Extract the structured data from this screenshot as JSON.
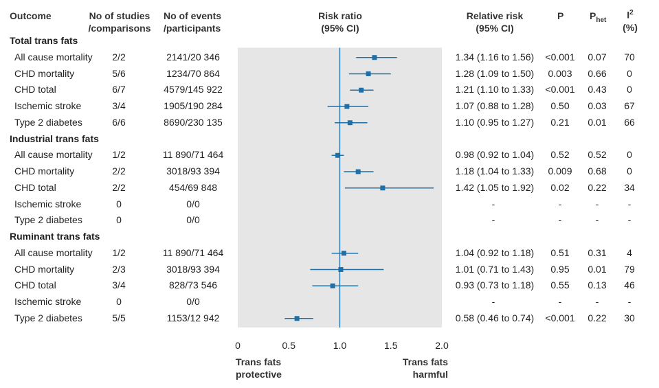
{
  "headers": {
    "outcome": "Outcome",
    "studies_1": "No of studies",
    "studies_2": "/comparisons",
    "events_1": "No of events",
    "events_2": "/participants",
    "rr_1": "Risk ratio",
    "rr_2": "(95% CI)",
    "relrisk_1": "Relative risk",
    "relrisk_2": "(95% CI)",
    "p": "P",
    "phet_main": "P",
    "phet_sub": "het",
    "i2_main": "I",
    "i2_sup": "2",
    "i2_unit": "(%)"
  },
  "axis": {
    "ticks": [
      "0",
      "0.5",
      "1.0",
      "1.5",
      "2.0"
    ],
    "tick_values": [
      0,
      0.5,
      1.0,
      1.5,
      2.0
    ],
    "left_caption_1": "Trans fats",
    "left_caption_2": "protective",
    "right_caption_1": "Trans fats",
    "right_caption_2": "harmful"
  },
  "colors": {
    "marker": "#1f6fa6",
    "panel": "#e6e6e6",
    "refline": "#1f6fa6"
  },
  "chart_data": {
    "type": "forest",
    "xlim": [
      0,
      2.0
    ],
    "reference_line": 1.0,
    "groups": [
      {
        "name": "Total trans fats",
        "rows": [
          {
            "outcome": "All cause mortality",
            "studies": "2/2",
            "events": "2141/20 346",
            "rr": 1.34,
            "lo": 1.16,
            "hi": 1.56,
            "rr_text": "1.34 (1.16 to 1.56)",
            "p": "<0.001",
            "phet": "0.07",
            "i2": "70"
          },
          {
            "outcome": "CHD mortality",
            "studies": "5/6",
            "events": "1234/70 864",
            "rr": 1.28,
            "lo": 1.09,
            "hi": 1.5,
            "rr_text": "1.28 (1.09 to 1.50)",
            "p": "0.003",
            "phet": "0.66",
            "i2": "0"
          },
          {
            "outcome": "CHD total",
            "studies": "6/7",
            "events": "4579/145 922",
            "rr": 1.21,
            "lo": 1.1,
            "hi": 1.33,
            "rr_text": "1.21 (1.10 to 1.33)",
            "p": "<0.001",
            "phet": "0.43",
            "i2": "0"
          },
          {
            "outcome": "Ischemic stroke",
            "studies": "3/4",
            "events": "1905/190 284",
            "rr": 1.07,
            "lo": 0.88,
            "hi": 1.28,
            "rr_text": "1.07 (0.88 to 1.28)",
            "p": "0.50",
            "phet": "0.03",
            "i2": "67"
          },
          {
            "outcome": "Type 2 diabetes",
            "studies": "6/6",
            "events": "8690/230 135",
            "rr": 1.1,
            "lo": 0.95,
            "hi": 1.27,
            "rr_text": "1.10 (0.95 to 1.27)",
            "p": "0.21",
            "phet": "0.01",
            "i2": "66"
          }
        ]
      },
      {
        "name": "Industrial trans fats",
        "rows": [
          {
            "outcome": "All cause mortality",
            "studies": "1/2",
            "events": "11 890/71 464",
            "rr": 0.98,
            "lo": 0.92,
            "hi": 1.04,
            "rr_text": "0.98 (0.92 to 1.04)",
            "p": "0.52",
            "phet": "0.52",
            "i2": "0"
          },
          {
            "outcome": "CHD mortality",
            "studies": "2/2",
            "events": "3018/93 394",
            "rr": 1.18,
            "lo": 1.04,
            "hi": 1.33,
            "rr_text": "1.18 (1.04 to 1.33)",
            "p": "0.009",
            "phet": "0.68",
            "i2": "0"
          },
          {
            "outcome": "CHD total",
            "studies": "2/2",
            "events": "454/69 848",
            "rr": 1.42,
            "lo": 1.05,
            "hi": 1.92,
            "rr_text": "1.42 (1.05 to 1.92)",
            "p": "0.02",
            "phet": "0.22",
            "i2": "34"
          },
          {
            "outcome": "Ischemic stroke",
            "studies": "0",
            "events": "0/0",
            "rr": null,
            "lo": null,
            "hi": null,
            "rr_text": "-",
            "p": "-",
            "phet": "-",
            "i2": "-"
          },
          {
            "outcome": "Type 2 diabetes",
            "studies": "0",
            "events": "0/0",
            "rr": null,
            "lo": null,
            "hi": null,
            "rr_text": "-",
            "p": "-",
            "phet": "-",
            "i2": "-"
          }
        ]
      },
      {
        "name": "Ruminant trans fats",
        "rows": [
          {
            "outcome": "All cause mortality",
            "studies": "1/2",
            "events": "11 890/71 464",
            "rr": 1.04,
            "lo": 0.92,
            "hi": 1.18,
            "rr_text": "1.04 (0.92 to 1.18)",
            "p": "0.51",
            "phet": "0.31",
            "i2": "4"
          },
          {
            "outcome": "CHD mortality",
            "studies": "2/3",
            "events": "3018/93 394",
            "rr": 1.01,
            "lo": 0.71,
            "hi": 1.43,
            "rr_text": "1.01 (0.71 to 1.43)",
            "p": "0.95",
            "phet": "0.01",
            "i2": "79"
          },
          {
            "outcome": "CHD total",
            "studies": "3/4",
            "events": "828/73 546",
            "rr": 0.93,
            "lo": 0.73,
            "hi": 1.18,
            "rr_text": "0.93 (0.73 to 1.18)",
            "p": "0.55",
            "phet": "0.13",
            "i2": "46"
          },
          {
            "outcome": "Ischemic stroke",
            "studies": "0",
            "events": "0/0",
            "rr": null,
            "lo": null,
            "hi": null,
            "rr_text": "-",
            "p": "-",
            "phet": "-",
            "i2": "-"
          },
          {
            "outcome": "Type 2 diabetes",
            "studies": "5/5",
            "events": "1153/12 942",
            "rr": 0.58,
            "lo": 0.46,
            "hi": 0.74,
            "rr_text": "0.58 (0.46 to 0.74)",
            "p": "<0.001",
            "phet": "0.22",
            "i2": "30"
          }
        ]
      }
    ]
  }
}
